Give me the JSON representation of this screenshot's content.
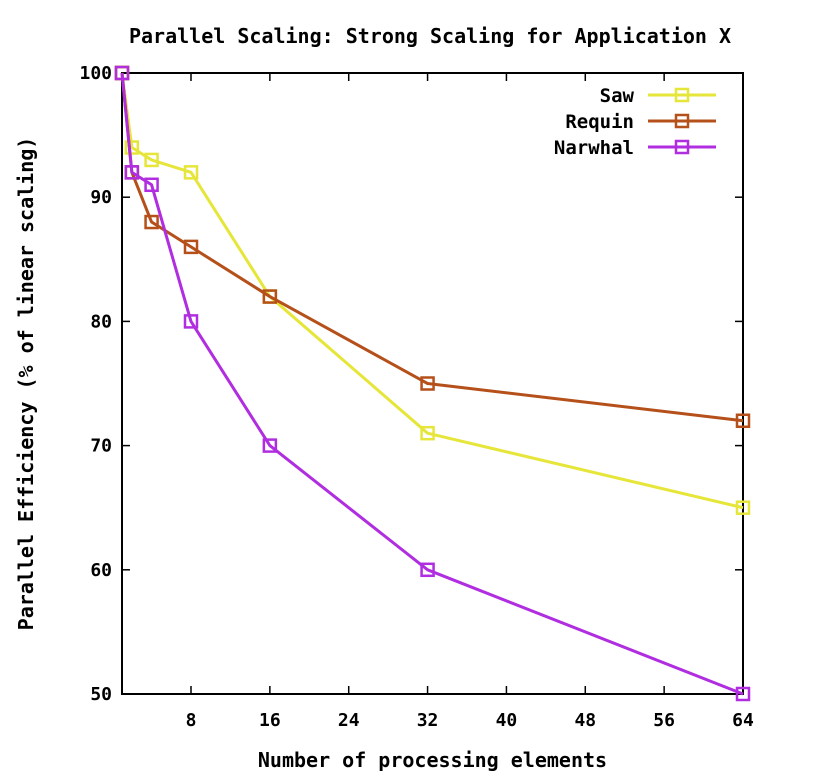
{
  "chart_data": {
    "type": "line",
    "title": "Parallel Scaling: Strong Scaling for Application X",
    "xlabel": "Number of processing elements",
    "ylabel": "Parallel Efficiency (% of linear scaling)",
    "xlim": [
      1,
      64
    ],
    "ylim": [
      50,
      100
    ],
    "xticks": [
      8,
      16,
      24,
      32,
      40,
      48,
      56,
      64
    ],
    "yticks": [
      50,
      60,
      70,
      80,
      90,
      100
    ],
    "grid": false,
    "legend": "top-right",
    "series": [
      {
        "name": "Saw",
        "color": "#e6e63a",
        "x": [
          1,
          2,
          4,
          8,
          16,
          32,
          64
        ],
        "y": [
          100,
          94,
          93,
          92,
          82,
          71,
          65
        ]
      },
      {
        "name": "Requin",
        "color": "#b5501a",
        "x": [
          1,
          2,
          4,
          8,
          16,
          32,
          64
        ],
        "y": [
          100,
          92,
          88,
          86,
          82,
          75,
          72
        ]
      },
      {
        "name": "Narwhal",
        "color": "#b02de0",
        "x": [
          1,
          2,
          4,
          8,
          16,
          32,
          64
        ],
        "y": [
          100,
          92,
          91,
          80,
          70,
          60,
          50
        ]
      }
    ]
  }
}
